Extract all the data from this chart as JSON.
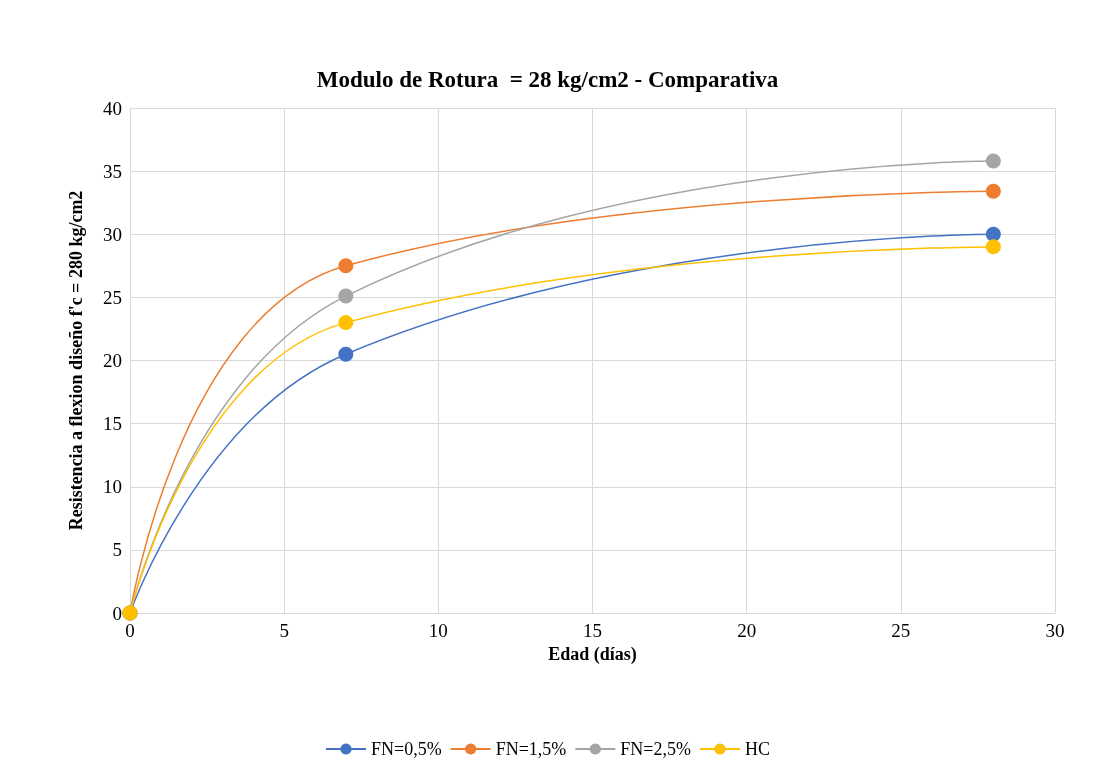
{
  "chart_data": {
    "type": "line",
    "title": "Modulo de Rotura  = 28 kg/cm2 - Comparativa",
    "xlabel": "Edad (días)",
    "ylabel": "Resistencia a flexion diseño f'c = 280 kg/cm2",
    "x": [
      0,
      7,
      28
    ],
    "series": [
      {
        "name": "FN=0,5%",
        "color": "#4472c4",
        "values": [
          0,
          20.5,
          30
        ]
      },
      {
        "name": "FN=1,5%",
        "color": "#ed7d31",
        "values": [
          0,
          27.5,
          33.4
        ]
      },
      {
        "name": "FN=2,5%",
        "color": "#a5a5a5",
        "values": [
          0,
          25.1,
          35.8
        ]
      },
      {
        "name": "HC",
        "color": "#ffc000",
        "values": [
          0,
          23,
          29
        ]
      }
    ],
    "xlim": [
      0,
      30
    ],
    "xticks": [
      0,
      5,
      10,
      15,
      20,
      25,
      30
    ],
    "ylim": [
      0,
      40
    ],
    "yticks": [
      0,
      5,
      10,
      15,
      20,
      25,
      30,
      35,
      40
    ],
    "grid": true,
    "legend": "bottom",
    "marker": "circle",
    "line_style": "solid"
  }
}
